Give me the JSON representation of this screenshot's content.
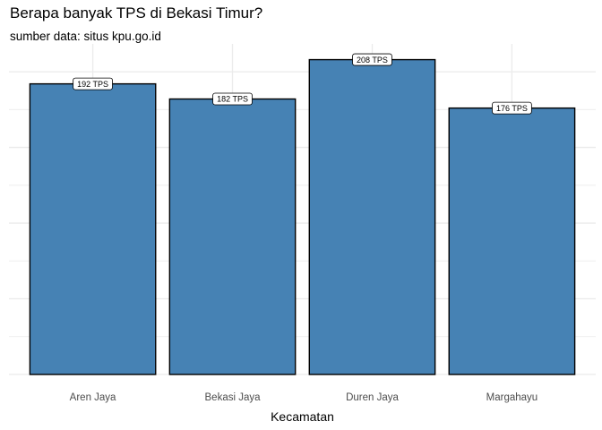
{
  "chart_data": {
    "type": "bar",
    "title": "Berapa banyak TPS di Bekasi Timur?",
    "subtitle": "sumber data: situs kpu.go.id",
    "xlabel": "Kecamatan",
    "ylabel": "",
    "categories": [
      "Aren Jaya",
      "Bekasi Jaya",
      "Duren Jaya",
      "Margahayu"
    ],
    "values": [
      192,
      182,
      208,
      176
    ],
    "data_labels": [
      "192 TPS",
      "182 TPS",
      "208 TPS",
      "176 TPS"
    ],
    "ylim": [
      0,
      218.4
    ],
    "grid": true,
    "y_axis_labels_shown": false,
    "legend": "none"
  },
  "colors": {
    "bar_fill": "#4682b4",
    "bar_stroke": "#000000",
    "grid": "#ebebeb",
    "background": "#ffffff",
    "label_fill": "#ffffff"
  }
}
